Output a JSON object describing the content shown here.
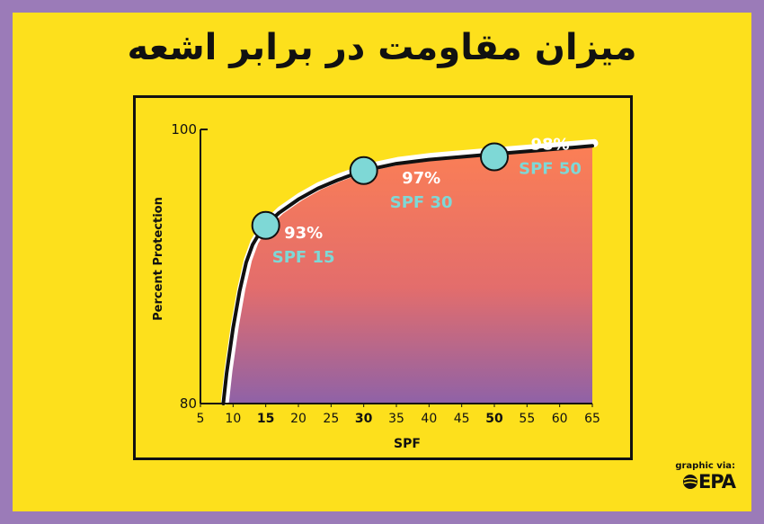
{
  "title": "میزان مقاومت در برابر اشعه",
  "credit": {
    "via_label": "graphic via:",
    "logo_text": "EPA",
    "logo_icon": "epa-globe-icon"
  },
  "colors": {
    "background_frame": "#9b7bb8",
    "card": "#fde01c",
    "area_top": "#fb7f55",
    "area_bottom": "#8f62a7",
    "marker": "#7ed8d6",
    "label_white": "#ffffff",
    "label_teal": "#7ed8d6"
  },
  "chart_data": {
    "type": "area",
    "xlabel": "SPF",
    "ylabel": "Percent Protection",
    "xlim": [
      5,
      65
    ],
    "ylim": [
      80,
      100
    ],
    "x_ticks": [
      5,
      10,
      15,
      20,
      25,
      30,
      35,
      40,
      45,
      50,
      55,
      60,
      65
    ],
    "x_ticks_bold": [
      15,
      30,
      50
    ],
    "y_ticks": [
      80,
      100
    ],
    "series": [
      {
        "x": [
          8.5,
          9,
          10,
          11,
          12,
          13,
          14,
          15,
          17,
          20,
          23,
          26,
          30,
          35,
          40,
          45,
          50,
          55,
          60,
          65
        ],
        "y": [
          80,
          82.2,
          85.5,
          88.2,
          90.3,
          91.6,
          92.4,
          93.0,
          93.9,
          94.9,
          95.7,
          96.3,
          97.0,
          97.5,
          97.8,
          98.0,
          98.2,
          98.4,
          98.6,
          98.8
        ]
      }
    ],
    "highlights": [
      {
        "x": 15,
        "y": 93,
        "percent_label": "93%",
        "spf_label": "SPF 15"
      },
      {
        "x": 30,
        "y": 97,
        "percent_label": "97%",
        "spf_label": "SPF 30"
      },
      {
        "x": 50,
        "y": 98,
        "percent_label": "98%",
        "spf_label": "SPF 50"
      }
    ],
    "grid": false,
    "legend": "none"
  }
}
